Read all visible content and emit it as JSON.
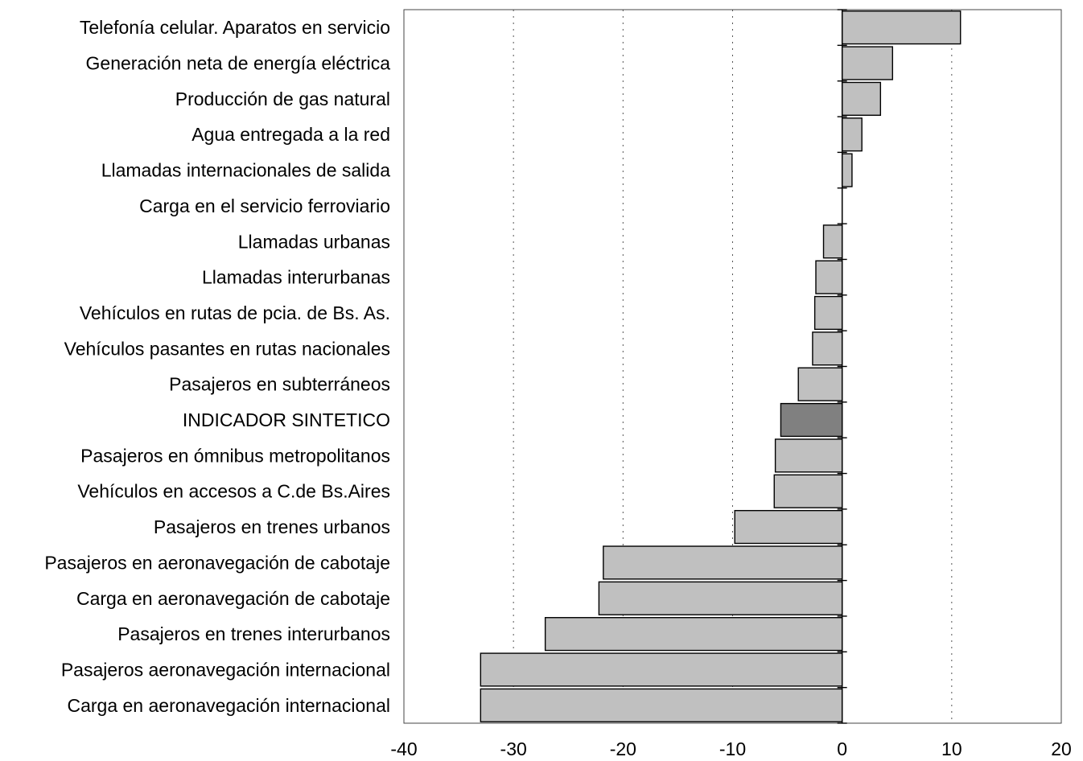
{
  "chart_data": {
    "type": "bar",
    "orientation": "horizontal",
    "categories": [
      "Telefonía celular. Aparatos en servicio",
      "Generación neta de energía eléctrica",
      "Producción de gas natural",
      "Agua entregada a la red",
      "Llamadas internacionales de salida",
      "Carga en el servicio ferroviario",
      "Llamadas urbanas",
      "Llamadas interurbanas",
      "Vehículos en rutas de pcia. de Bs. As.",
      "Vehículos pasantes en rutas nacionales",
      "Pasajeros en subterráneos",
      "INDICADOR SINTETICO",
      "Pasajeros en ómnibus metropolitanos",
      "Vehículos en accesos a C.de Bs.Aires",
      "Pasajeros en trenes urbanos",
      "Pasajeros en aeronavegación de cabotaje",
      "Carga en aeronavegación de cabotaje",
      "Pasajeros en trenes interurbanos",
      "Pasajeros aeronavegación internacional",
      "Carga en aeronavegación internacional"
    ],
    "values": [
      10.8,
      4.6,
      3.5,
      1.8,
      0.9,
      0.0,
      -1.7,
      -2.4,
      -2.5,
      -2.7,
      -4.0,
      -5.6,
      -6.1,
      -6.2,
      -9.8,
      -21.8,
      -22.2,
      -27.1,
      -33.0,
      -33.0
    ],
    "highlight_category": "INDICADOR SINTETICO",
    "bar_color": "#c0c0c0",
    "highlight_color": "#808080",
    "xlim": [
      -40,
      20
    ],
    "xticks": [
      -40,
      -30,
      -20,
      -10,
      0,
      10,
      20
    ],
    "xtick_labels": [
      "-40",
      "-30",
      "-20",
      "-10",
      "0",
      "10",
      "20"
    ],
    "vertical_grid": "dotted",
    "legend": "none"
  }
}
